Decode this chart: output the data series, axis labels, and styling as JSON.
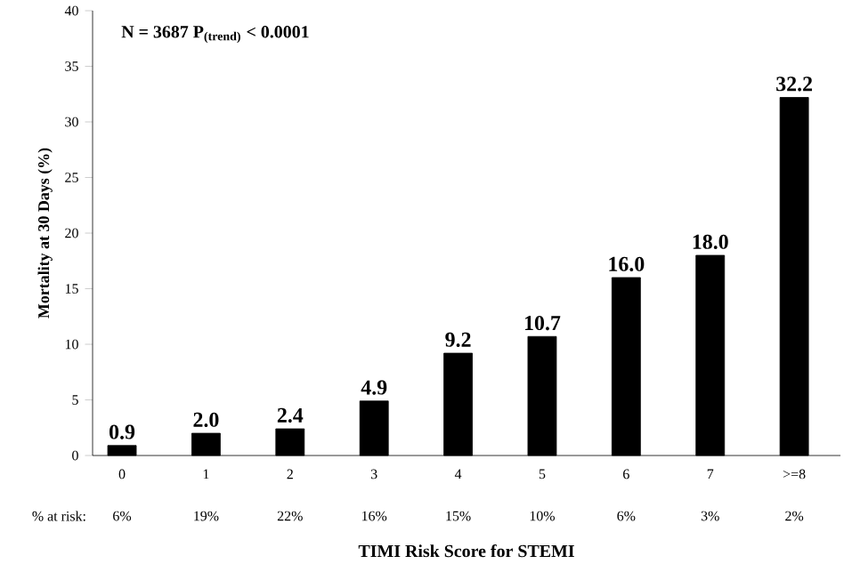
{
  "chart_data": {
    "type": "bar",
    "categories": [
      "0",
      "1",
      "2",
      "3",
      "4",
      "5",
      "6",
      "7",
      ">=8"
    ],
    "values": [
      0.9,
      2.0,
      2.4,
      4.9,
      9.2,
      10.7,
      16.0,
      18.0,
      32.2
    ],
    "value_labels": [
      "0.9",
      "2.0",
      "2.4",
      "4.9",
      "9.2",
      "10.7",
      "16.0",
      "18.0",
      "32.2"
    ],
    "color": "#000000",
    "ylim": [
      0,
      40
    ],
    "yticks": [
      0,
      5,
      10,
      15,
      20,
      25,
      30,
      35,
      40
    ],
    "ylabel": "Mortality at 30 Days (%)",
    "xlabel": "TIMI Risk Score for STEMI",
    "annotations": [
      "N = 3687   P$_{(trend)}$ < 0.0001",
      "% at risk:",
      "6%",
      "19%",
      "22%",
      "16%",
      "15%",
      "10%",
      "6%",
      "3%",
      "2%"
    ]
  }
}
